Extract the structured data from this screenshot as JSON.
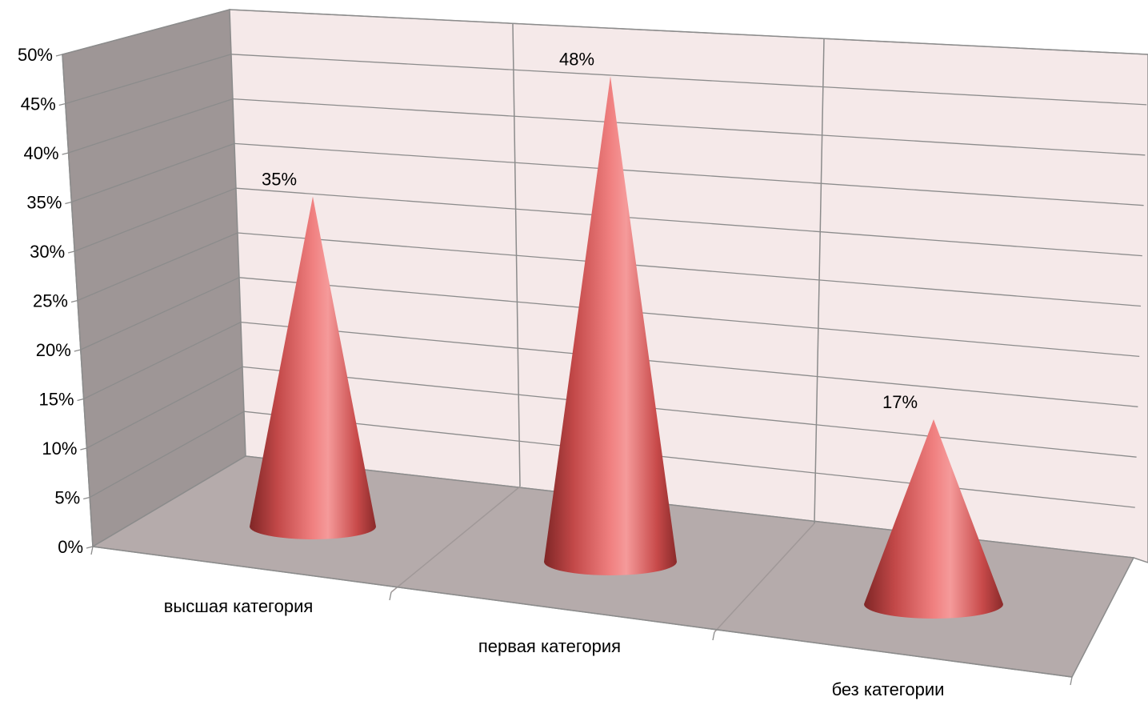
{
  "chart_data": {
    "type": "bar",
    "shape": "cone-3d",
    "categories": [
      "высшая категория",
      "первая категория",
      "без категории"
    ],
    "values": [
      35,
      48,
      17
    ],
    "data_labels": [
      "35%",
      "48%",
      "17%"
    ],
    "y_ticks": [
      "0%",
      "5%",
      "10%",
      "15%",
      "20%",
      "25%",
      "30%",
      "35%",
      "40%",
      "45%",
      "50%"
    ],
    "ylim": [
      0,
      50
    ],
    "y_unit": "%",
    "grid": true,
    "legend": "none",
    "colors": {
      "cone": "#e06262",
      "cone_dark": "#8a2a2a",
      "cone_light": "#f59a9a",
      "back_wall": "#f5e9e9",
      "side_wall": "#9e9696",
      "floor": "#b5abab",
      "grid": "#8c8c8c"
    }
  }
}
